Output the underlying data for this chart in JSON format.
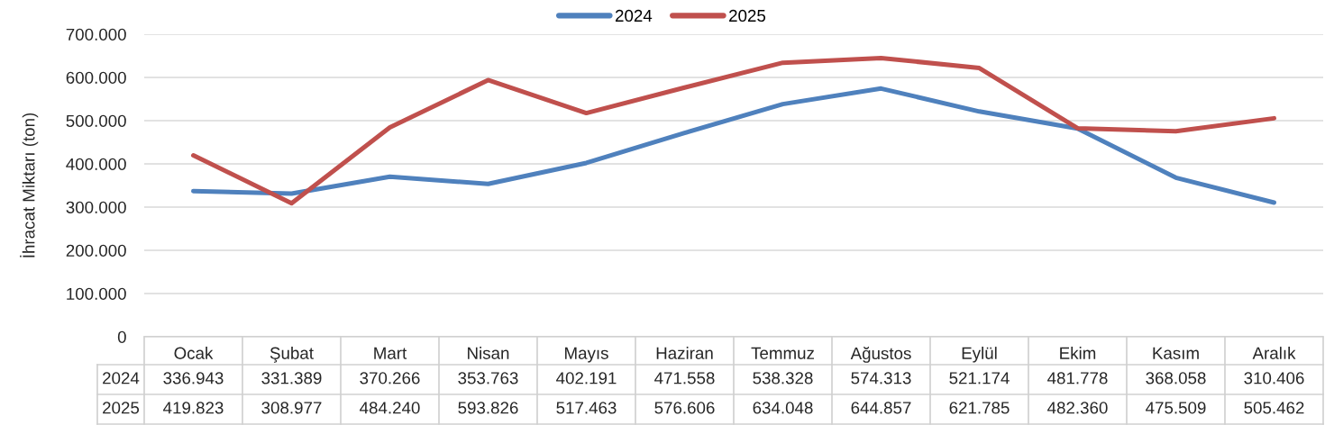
{
  "chart_data": {
    "type": "line",
    "ylabel": "İhracat Miktarı (ton)",
    "categories": [
      "Ocak",
      "Şubat",
      "Mart",
      "Nisan",
      "Mayıs",
      "Haziran",
      "Temmuz",
      "Ağustos",
      "Eylül",
      "Ekim",
      "Kasım",
      "Aralık"
    ],
    "series": [
      {
        "name": "2024",
        "color": "#4f81bd",
        "values": [
          336943,
          331389,
          370266,
          353763,
          402191,
          471558,
          538328,
          574313,
          521174,
          481778,
          368058,
          310406
        ],
        "value_labels": [
          "336.943",
          "331.389",
          "370.266",
          "353.763",
          "402.191",
          "471.558",
          "538.328",
          "574.313",
          "521.174",
          "481.778",
          "368.058",
          "310.406"
        ]
      },
      {
        "name": "2025",
        "color": "#c0504d",
        "values": [
          419823,
          308977,
          484240,
          593826,
          517463,
          576606,
          634048,
          644857,
          621785,
          482360,
          475509,
          505462
        ],
        "value_labels": [
          "419.823",
          "308.977",
          "484.240",
          "593.826",
          "517.463",
          "576.606",
          "634.048",
          "644.857",
          "621.785",
          "482.360",
          "475.509",
          "505.462"
        ]
      }
    ],
    "ylim": [
      0,
      700000
    ],
    "yticks": [
      0,
      {
        "value": 100000,
        "label": "100.000"
      },
      {
        "value": 200000,
        "label": "200.000"
      },
      {
        "value": 300000,
        "label": "300.000"
      },
      {
        "value": 400000,
        "label": "400.000"
      },
      {
        "value": 500000,
        "label": "500.000"
      },
      {
        "value": 600000,
        "label": "600.000"
      },
      {
        "value": 700000,
        "label": "700.000"
      }
    ],
    "grid": "y",
    "legend": "top"
  }
}
